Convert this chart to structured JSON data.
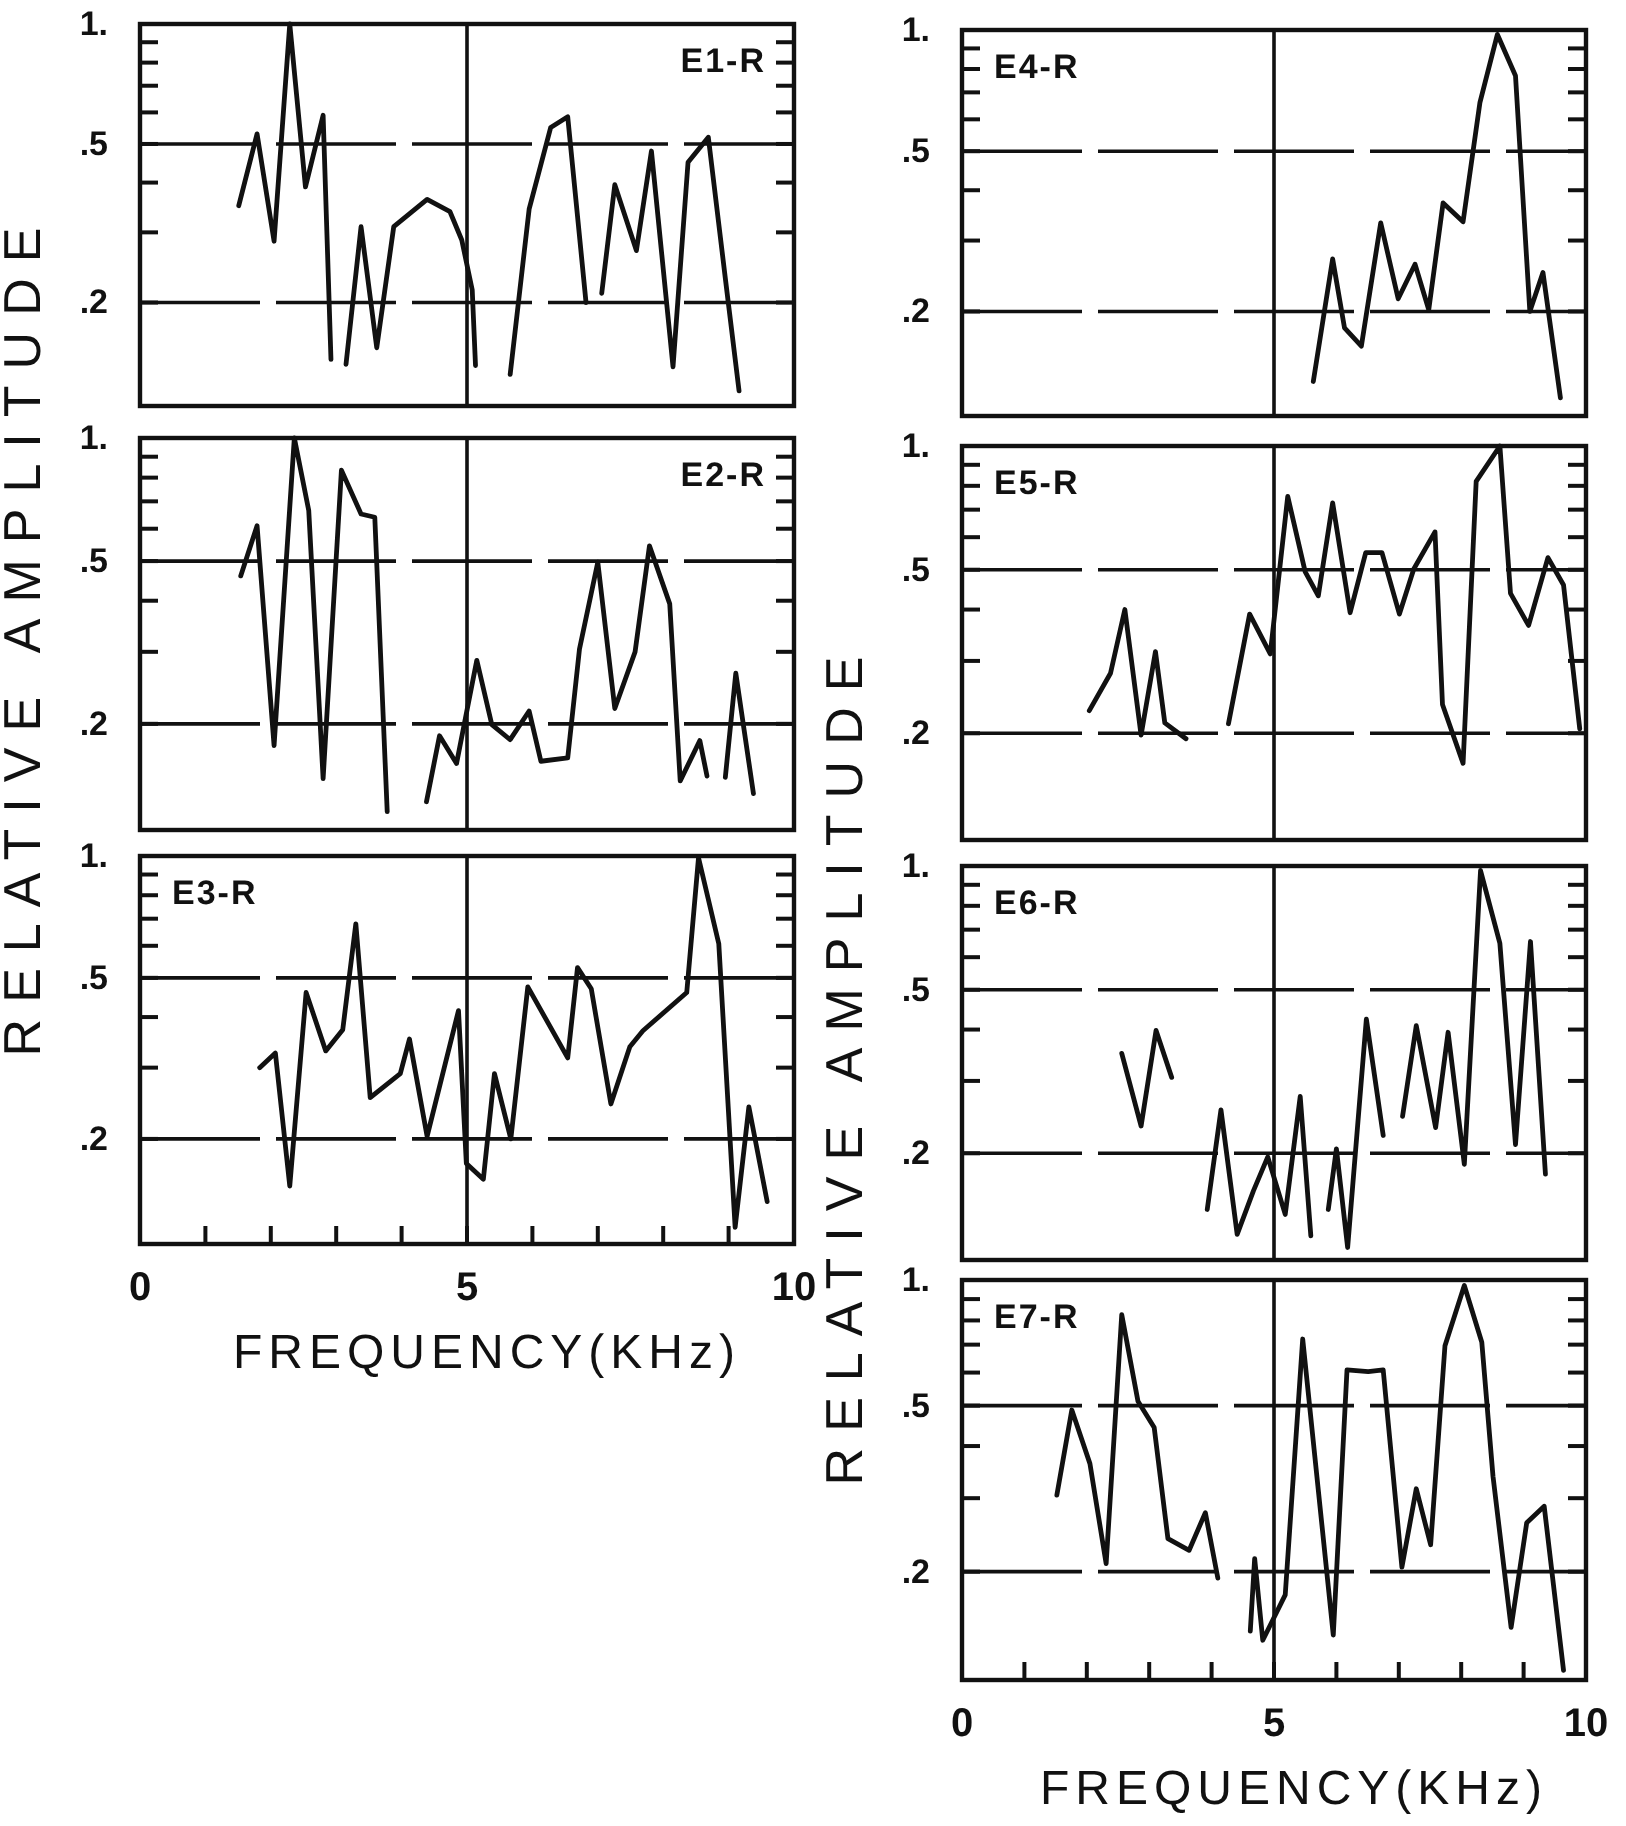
{
  "chart_data": [
    {
      "type": "line",
      "title": "E1-R",
      "xlim": [
        0,
        10
      ],
      "xticks": [
        0,
        5,
        10
      ],
      "ylim": [
        0.11,
        1
      ],
      "yticks": [
        {
          "value": 1,
          "label": "1."
        },
        {
          "value": 0.9,
          "label": null
        },
        {
          "value": 0.8,
          "label": null
        },
        {
          "value": 0.7,
          "label": null
        },
        {
          "value": 0.6,
          "label": null
        },
        {
          "value": 0.5,
          "label": ".5"
        },
        {
          "value": 0.4,
          "label": null
        },
        {
          "value": 0.3,
          "label": null
        },
        {
          "value": 0.2,
          "label": ".2"
        }
      ],
      "log": true,
      "grid": "y",
      "ref_lines": [
        {
          "axis": "x",
          "value": 5
        }
      ],
      "tick_labels": "y",
      "line_style": "solid",
      "series": [
        {
          "color": "#111111",
          "x": [
            1.51,
            1.79,
            2.05,
            2.29,
            2.53,
            2.8,
            2.92,
            3.0,
            3.15,
            3.38,
            3.62,
            3.88,
            4.39,
            4.74,
            4.92,
            5.08,
            5.13,
            5.4,
            5.66,
            5.95,
            6.28,
            6.54,
            6.82,
            6.95,
            7.06,
            7.26,
            7.59,
            7.82,
            8.15,
            8.38,
            8.69,
            8.95,
            9.16
          ],
          "values": [
            0.35,
            0.53,
            0.285,
            1.0,
            0.39,
            0.59,
            0.144,
            null,
            0.14,
            0.31,
            0.154,
            0.31,
            0.363,
            0.338,
            0.287,
            0.215,
            0.139,
            null,
            0.132,
            0.343,
            0.55,
            0.585,
            0.2,
            null,
            0.211,
            0.395,
            0.27,
            0.48,
            0.138,
            0.45,
            0.52,
            0.23,
            0.12
          ]
        }
      ]
    },
    {
      "type": "line",
      "title": "E2-R",
      "ylabel": "RELATIVE AMPLITUDE",
      "xlim": [
        0,
        10
      ],
      "xticks": [
        0,
        5,
        10
      ],
      "ylim": [
        0.11,
        1
      ],
      "yticks": [
        {
          "value": 1,
          "label": "1."
        },
        {
          "value": 0.9,
          "label": null
        },
        {
          "value": 0.8,
          "label": null
        },
        {
          "value": 0.7,
          "label": null
        },
        {
          "value": 0.6,
          "label": null
        },
        {
          "value": 0.5,
          "label": ".5"
        },
        {
          "value": 0.4,
          "label": null
        },
        {
          "value": 0.3,
          "label": null
        },
        {
          "value": 0.2,
          "label": ".2"
        }
      ],
      "log": true,
      "grid": "y",
      "ref_lines": [
        {
          "axis": "x",
          "value": 5
        }
      ],
      "tick_labels": "y",
      "line_style": "solid",
      "series": [
        {
          "color": "#111111",
          "x": [
            1.54,
            1.79,
            2.05,
            2.36,
            2.58,
            2.8,
            3.08,
            3.38,
            3.59,
            3.78,
            4.1,
            4.38,
            4.58,
            4.84,
            5.15,
            5.38,
            5.66,
            5.95,
            6.13,
            6.54,
            6.72,
            7.0,
            7.26,
            7.57,
            7.79,
            8.1,
            8.26,
            8.56,
            8.67,
            8.8,
            8.95,
            9.11,
            9.38
          ],
          "values": [
            0.46,
            0.61,
            0.177,
            1.0,
            0.665,
            0.147,
            0.834,
            0.652,
            0.64,
            0.122,
            null,
            0.129,
            0.187,
            0.16,
            0.286,
            0.199,
            0.183,
            0.215,
            0.162,
            0.165,
            0.305,
            0.497,
            0.218,
            0.3,
            0.545,
            0.393,
            0.145,
            0.182,
            0.149,
            null,
            0.148,
            0.266,
            0.135
          ]
        }
      ]
    },
    {
      "type": "line",
      "title": "E3-R",
      "xlabel": "FREQUENCY(KHz)",
      "xlim": [
        0,
        10
      ],
      "xticks": [
        0,
        {
          "value": 1,
          "label": null
        },
        {
          "value": 2,
          "label": null
        },
        {
          "value": 3,
          "label": null
        },
        {
          "value": 4,
          "label": null
        },
        5,
        {
          "value": 6,
          "label": null
        },
        {
          "value": 7,
          "label": null
        },
        {
          "value": 8,
          "label": null
        },
        {
          "value": 9,
          "label": null
        },
        10
      ],
      "ylim": [
        0.11,
        1
      ],
      "yticks": [
        {
          "value": 1,
          "label": "1."
        },
        {
          "value": 0.9,
          "label": null
        },
        {
          "value": 0.8,
          "label": null
        },
        {
          "value": 0.7,
          "label": null
        },
        {
          "value": 0.6,
          "label": null
        },
        {
          "value": 0.5,
          "label": ".5"
        },
        {
          "value": 0.4,
          "label": null
        },
        {
          "value": 0.3,
          "label": null
        },
        {
          "value": 0.2,
          "label": ".2"
        }
      ],
      "log": true,
      "grid": "y",
      "ref_lines": [
        {
          "axis": "x",
          "value": 5
        }
      ],
      "line_style": "solid",
      "series": [
        {
          "color": "#111111",
          "x": [
            1.83,
            2.07,
            2.29,
            2.54,
            2.84,
            3.1,
            3.3,
            3.52,
            3.98,
            4.12,
            4.39,
            4.87,
            4.99,
            5.25,
            5.42,
            5.67,
            5.93,
            6.54,
            6.69,
            6.9,
            7.2,
            7.49,
            7.69,
            8.36,
            8.54,
            8.85,
            9.1,
            9.31,
            9.59
          ],
          "values": [
            0.3,
            0.326,
            0.153,
            0.46,
            0.33,
            0.372,
            0.68,
            0.253,
            0.29,
            0.353,
            0.203,
            0.415,
            0.174,
            0.159,
            0.29,
            0.2,
            0.475,
            0.317,
            0.53,
            0.47,
            0.244,
            0.338,
            0.37,
            0.46,
            0.99,
            0.607,
            0.121,
            0.24,
            0.14
          ]
        }
      ]
    },
    {
      "type": "line",
      "title": "E4-R",
      "xlim": [
        0,
        10
      ],
      "xticks": [
        0,
        5,
        10
      ],
      "ylim": [
        0.11,
        1
      ],
      "yticks": [
        {
          "value": 1,
          "label": "1."
        },
        {
          "value": 0.9,
          "label": null
        },
        {
          "value": 0.8,
          "label": null
        },
        {
          "value": 0.7,
          "label": null
        },
        {
          "value": 0.6,
          "label": null
        },
        {
          "value": 0.5,
          "label": ".5"
        },
        {
          "value": 0.4,
          "label": null
        },
        {
          "value": 0.3,
          "label": null
        },
        {
          "value": 0.2,
          "label": ".2"
        }
      ],
      "log": true,
      "grid": "y",
      "ref_lines": [
        {
          "axis": "x",
          "value": 5
        }
      ],
      "tick_labels": "y",
      "line_style": "solid",
      "series": [
        {
          "color": "#111111",
          "x": [
            5.63,
            5.94,
            6.13,
            6.4,
            6.71,
            6.99,
            7.26,
            7.48,
            7.71,
            8.03,
            8.3,
            8.58,
            8.87,
            9.1,
            9.31,
            9.59
          ],
          "values": [
            0.134,
            0.27,
            0.182,
            0.164,
            0.332,
            0.215,
            0.262,
            0.202,
            0.372,
            0.334,
            0.66,
            0.975,
            0.77,
            0.2,
            0.25,
            0.122
          ]
        }
      ]
    },
    {
      "type": "line",
      "title": "E5-R",
      "xlim": [
        0,
        10
      ],
      "xticks": [
        0,
        5,
        10
      ],
      "ylim": [
        0.11,
        1
      ],
      "yticks": [
        {
          "value": 1,
          "label": "1."
        },
        {
          "value": 0.9,
          "label": null
        },
        {
          "value": 0.8,
          "label": null
        },
        {
          "value": 0.7,
          "label": null
        },
        {
          "value": 0.6,
          "label": null
        },
        {
          "value": 0.5,
          "label": ".5"
        },
        {
          "value": 0.4,
          "label": null
        },
        {
          "value": 0.3,
          "label": null
        },
        {
          "value": 0.2,
          "label": ".2"
        }
      ],
      "log": true,
      "grid": "y",
      "ref_lines": [
        {
          "axis": "x",
          "value": 5
        }
      ],
      "tick_labels": "y",
      "line_style": "solid",
      "series": [
        {
          "color": "#111111",
          "x": [
            2.04,
            2.38,
            2.61,
            2.87,
            3.1,
            3.25,
            3.59,
            3.8,
            4.27,
            4.61,
            4.94,
            5.22,
            5.5,
            5.71,
            5.94,
            6.22,
            6.47,
            6.73,
            7.01,
            7.24,
            7.58,
            7.7,
            8.03,
            8.24,
            8.62,
            8.79,
            9.08,
            9.39,
            9.64,
            9.9
          ],
          "values": [
            0.227,
            0.28,
            0.4,
            0.198,
            0.316,
            0.212,
            0.194,
            null,
            0.211,
            0.39,
            0.312,
            0.754,
            0.494,
            0.432,
            0.727,
            0.393,
            0.55,
            0.55,
            0.39,
            0.502,
            0.618,
            0.235,
            0.169,
            0.82,
            1.0,
            0.438,
            0.366,
            0.535,
            0.459,
            0.205
          ]
        }
      ]
    },
    {
      "type": "line",
      "title": "E6-R",
      "ylabel": "RELATIVE AMPLITUDE",
      "xlim": [
        0,
        10
      ],
      "xticks": [
        0,
        5,
        10
      ],
      "ylim": [
        0.11,
        1
      ],
      "yticks": [
        {
          "value": 1,
          "label": "1."
        },
        {
          "value": 0.9,
          "label": null
        },
        {
          "value": 0.8,
          "label": null
        },
        {
          "value": 0.7,
          "label": null
        },
        {
          "value": 0.6,
          "label": null
        },
        {
          "value": 0.5,
          "label": ".5"
        },
        {
          "value": 0.4,
          "label": null
        },
        {
          "value": 0.3,
          "label": null
        },
        {
          "value": 0.2,
          "label": ".2"
        }
      ],
      "log": true,
      "grid": "y",
      "ref_lines": [
        {
          "axis": "x",
          "value": 5
        }
      ],
      "tick_labels": "y",
      "line_style": "solid",
      "series": [
        {
          "color": "#111111",
          "x": [
            2.56,
            2.87,
            3.11,
            3.36,
            3.59,
            3.93,
            4.15,
            4.41,
            4.67,
            4.9,
            5.18,
            5.42,
            5.59,
            5.7,
            5.87,
            6.0,
            6.18,
            6.48,
            6.75,
            6.9,
            7.06,
            7.28,
            7.59,
            7.79,
            8.05,
            8.31,
            8.62,
            8.87,
            9.11,
            9.35
          ],
          "values": [
            0.35,
            0.233,
            0.398,
            0.306,
            null,
            0.146,
            0.255,
            0.127,
            0.162,
            0.196,
            0.142,
            0.275,
            0.126,
            null,
            0.146,
            0.205,
            0.118,
            0.424,
            0.221,
            null,
            0.246,
            0.409,
            0.231,
            0.394,
            0.188,
            0.975,
            0.648,
            0.21,
            0.655,
            0.178
          ]
        }
      ]
    },
    {
      "type": "line",
      "title": "E7-R",
      "xlabel": "FREQUENCY(KHz)",
      "xlim": [
        0,
        10
      ],
      "xticks": [
        0,
        {
          "value": 1,
          "label": null
        },
        {
          "value": 2,
          "label": null
        },
        {
          "value": 3,
          "label": null
        },
        {
          "value": 4,
          "label": null
        },
        5,
        {
          "value": 6,
          "label": null
        },
        {
          "value": 7,
          "label": null
        },
        {
          "value": 8,
          "label": null
        },
        {
          "value": 9,
          "label": null
        },
        10
      ],
      "ylim": [
        0.11,
        1
      ],
      "yticks": [
        {
          "value": 1,
          "label": "1."
        },
        {
          "value": 0.9,
          "label": null
        },
        {
          "value": 0.8,
          "label": null
        },
        {
          "value": 0.7,
          "label": null
        },
        {
          "value": 0.6,
          "label": null
        },
        {
          "value": 0.5,
          "label": ".5"
        },
        {
          "value": 0.4,
          "label": null
        },
        {
          "value": 0.3,
          "label": null
        },
        {
          "value": 0.2,
          "label": ".2"
        }
      ],
      "log": true,
      "grid": "y",
      "ref_lines": [
        {
          "axis": "x",
          "value": 5
        }
      ],
      "line_style": "solid",
      "series": [
        {
          "color": "#111111",
          "x": [
            1.52,
            1.76,
            2.05,
            2.31,
            2.56,
            2.82,
            3.08,
            3.3,
            3.64,
            3.9,
            4.1,
            4.4,
            4.62,
            4.69,
            4.82,
            5.18,
            5.46,
            5.95,
            6.17,
            6.51,
            6.75,
            7.05,
            7.28,
            7.51,
            7.74,
            8.05,
            8.33,
            8.51,
            8.8,
            9.05,
            9.33,
            9.64
          ],
          "values": [
            0.305,
            0.488,
            0.363,
            0.209,
            0.826,
            0.512,
            0.443,
            0.24,
            0.225,
            0.277,
            0.193,
            null,
            0.144,
            0.215,
            0.137,
            0.176,
            0.722,
            0.141,
            0.609,
            0.603,
            0.609,
            0.205,
            0.316,
            0.232,
            0.696,
            0.97,
            0.709,
            0.338,
            0.147,
            0.262,
            0.287,
            0.116
          ]
        }
      ]
    }
  ]
}
